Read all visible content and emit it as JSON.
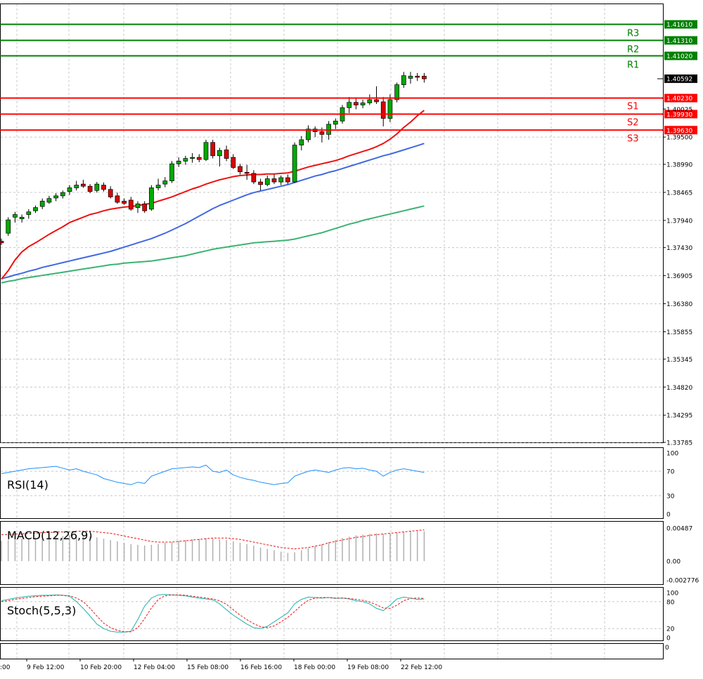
{
  "chart_data": {
    "type": "candlestick",
    "price_axis": {
      "ticks": [
        "1.41610",
        "1.41310",
        "1.41020",
        "1.40592",
        "1.40230",
        "1.40025",
        "1.39930",
        "1.39630",
        "1.39500",
        "1.38990",
        "1.38465",
        "1.37940",
        "1.37430",
        "1.36905",
        "1.36380",
        "1.35855",
        "1.35345",
        "1.34820",
        "1.34295",
        "1.33785"
      ],
      "ylim": [
        1.33785,
        1.4161
      ]
    },
    "levels": [
      {
        "name": "R3",
        "label": "R3",
        "value": 1.4161,
        "value_text": "1.41610",
        "color": "#008000"
      },
      {
        "name": "R2",
        "label": "R2",
        "value": 1.4131,
        "value_text": "1.41310",
        "color": "#008000"
      },
      {
        "name": "R1",
        "label": "R1",
        "value": 1.4102,
        "value_text": "1.41020",
        "color": "#008000"
      },
      {
        "name": "S1",
        "label": "S1",
        "value": 1.4023,
        "value_text": "1.40230",
        "color": "#ff0000"
      },
      {
        "name": "S2",
        "label": "S2",
        "value": 1.3993,
        "value_text": "1.39930",
        "color": "#ff0000"
      },
      {
        "name": "S3",
        "label": "S3",
        "value": 1.3963,
        "value_text": "1.39630",
        "color": "#ff0000"
      }
    ],
    "current_price": {
      "value": 1.40592,
      "value_text": "1.40592"
    },
    "x_labels": [
      "9 Feb 12:00",
      "10 Feb 20:00",
      "12 Feb 04:00",
      "15 Feb 08:00",
      "16 Feb 16:00",
      "18 Feb 00:00",
      "19 Feb 08:00",
      "22 Feb 12:00"
    ],
    "x_label_partial": ":00",
    "candles": [
      [
        1.3755,
        1.376,
        1.3748,
        1.3752
      ],
      [
        1.377,
        1.38,
        1.3765,
        1.3795
      ],
      [
        1.38,
        1.381,
        1.379,
        1.3805
      ],
      [
        1.3797,
        1.3805,
        1.379,
        1.38
      ],
      [
        1.3805,
        1.3815,
        1.3797,
        1.381
      ],
      [
        1.3812,
        1.3822,
        1.3808,
        1.3818
      ],
      [
        1.382,
        1.3835,
        1.3815,
        1.383
      ],
      [
        1.3828,
        1.384,
        1.3825,
        1.3835
      ],
      [
        1.3836,
        1.3845,
        1.383,
        1.384
      ],
      [
        1.384,
        1.385,
        1.3835,
        1.3846
      ],
      [
        1.3848,
        1.386,
        1.3842,
        1.3855
      ],
      [
        1.3855,
        1.3868,
        1.385,
        1.386
      ],
      [
        1.3862,
        1.387,
        1.3855,
        1.3858
      ],
      [
        1.3858,
        1.3862,
        1.3845,
        1.3848
      ],
      [
        1.385,
        1.3866,
        1.3846,
        1.3862
      ],
      [
        1.386,
        1.3865,
        1.3848,
        1.3852
      ],
      [
        1.3852,
        1.3858,
        1.3835,
        1.3838
      ],
      [
        1.384,
        1.3846,
        1.3825,
        1.3828
      ],
      [
        1.383,
        1.3835,
        1.3823,
        1.3826
      ],
      [
        1.3832,
        1.3838,
        1.3812,
        1.3815
      ],
      [
        1.3818,
        1.383,
        1.3808,
        1.3825
      ],
      [
        1.3825,
        1.383,
        1.3808,
        1.3812
      ],
      [
        1.3815,
        1.386,
        1.3812,
        1.3855
      ],
      [
        1.3855,
        1.3872,
        1.385,
        1.386
      ],
      [
        1.3862,
        1.3875,
        1.3856,
        1.3868
      ],
      [
        1.3868,
        1.3905,
        1.3864,
        1.39
      ],
      [
        1.39,
        1.3912,
        1.3894,
        1.3905
      ],
      [
        1.3905,
        1.3915,
        1.3898,
        1.391
      ],
      [
        1.391,
        1.392,
        1.3902,
        1.3912
      ],
      [
        1.3912,
        1.3918,
        1.3903,
        1.3908
      ],
      [
        1.3908,
        1.3945,
        1.3905,
        1.394
      ],
      [
        1.394,
        1.3945,
        1.391,
        1.3915
      ],
      [
        1.3915,
        1.393,
        1.3895,
        1.3925
      ],
      [
        1.3926,
        1.3934,
        1.3905,
        1.391
      ],
      [
        1.3912,
        1.3918,
        1.389,
        1.3893
      ],
      [
        1.3895,
        1.39,
        1.388,
        1.3885
      ],
      [
        1.3884,
        1.3898,
        1.387,
        1.3882
      ],
      [
        1.3882,
        1.3888,
        1.3862,
        1.3866
      ],
      [
        1.3866,
        1.3872,
        1.385,
        1.3861
      ],
      [
        1.3861,
        1.3878,
        1.3858,
        1.3872
      ],
      [
        1.3872,
        1.388,
        1.3862,
        1.3866
      ],
      [
        1.3866,
        1.3878,
        1.386,
        1.3874
      ],
      [
        1.3874,
        1.388,
        1.3862,
        1.3866
      ],
      [
        1.3866,
        1.394,
        1.3864,
        1.3935
      ],
      [
        1.3935,
        1.3952,
        1.3925,
        1.3945
      ],
      [
        1.3945,
        1.3972,
        1.394,
        1.3965
      ],
      [
        1.3965,
        1.397,
        1.395,
        1.396
      ],
      [
        1.396,
        1.3968,
        1.394,
        1.3955
      ],
      [
        1.3955,
        1.398,
        1.3945,
        1.3974
      ],
      [
        1.3974,
        1.3985,
        1.3965,
        1.398
      ],
      [
        1.398,
        1.401,
        1.3975,
        1.4005
      ],
      [
        1.4005,
        1.4025,
        1.3995,
        1.4015
      ],
      [
        1.4015,
        1.4022,
        1.4002,
        1.401
      ],
      [
        1.401,
        1.402,
        1.4004,
        1.4014
      ],
      [
        1.4014,
        1.403,
        1.401,
        1.402
      ],
      [
        1.402,
        1.4045,
        1.4012,
        1.4016
      ],
      [
        1.4016,
        1.4025,
        1.397,
        1.3985
      ],
      [
        1.3985,
        1.403,
        1.3978,
        1.402
      ],
      [
        1.402,
        1.4052,
        1.4015,
        1.4048
      ],
      [
        1.4048,
        1.4072,
        1.4042,
        1.4065
      ],
      [
        1.406,
        1.4072,
        1.405,
        1.4064
      ],
      [
        1.4064,
        1.407,
        1.4055,
        1.4062
      ],
      [
        1.4064,
        1.407,
        1.4052,
        1.4059
      ]
    ],
    "ma_fast": [
      1.3684,
      1.37,
      1.372,
      1.3735,
      1.3745,
      1.3752,
      1.376,
      1.3768,
      1.3775,
      1.3782,
      1.379,
      1.3795,
      1.38,
      1.3805,
      1.3808,
      1.3812,
      1.3815,
      1.3817,
      1.3819,
      1.382,
      1.3822,
      1.3824,
      1.3826,
      1.383,
      1.3834,
      1.3838,
      1.3843,
      1.3848,
      1.3853,
      1.3857,
      1.3862,
      1.3866,
      1.387,
      1.3873,
      1.3876,
      1.3878,
      1.3879,
      1.388,
      1.388,
      1.3881,
      1.3881,
      1.3882,
      1.3883,
      1.3886,
      1.389,
      1.3894,
      1.3897,
      1.39,
      1.3903,
      1.3906,
      1.391,
      1.3915,
      1.3919,
      1.3923,
      1.3927,
      1.3932,
      1.3938,
      1.3946,
      1.3956,
      1.3968,
      1.3978,
      1.399,
      1.4
    ],
    "ma_mid": [
      1.3685,
      1.3688,
      1.3692,
      1.3695,
      1.3699,
      1.3702,
      1.3706,
      1.3709,
      1.3712,
      1.3715,
      1.3718,
      1.3721,
      1.3724,
      1.3727,
      1.373,
      1.3733,
      1.3736,
      1.374,
      1.3744,
      1.3748,
      1.3752,
      1.3756,
      1.376,
      1.3765,
      1.377,
      1.3776,
      1.3782,
      1.3788,
      1.3795,
      1.3802,
      1.3809,
      1.3816,
      1.3822,
      1.3827,
      1.3832,
      1.3837,
      1.3842,
      1.3846,
      1.3849,
      1.3852,
      1.3855,
      1.3858,
      1.3861,
      1.3865,
      1.3869,
      1.3873,
      1.3877,
      1.388,
      1.3884,
      1.3887,
      1.3891,
      1.3895,
      1.3899,
      1.3903,
      1.3907,
      1.3911,
      1.3915,
      1.3918,
      1.3922,
      1.3926,
      1.393,
      1.3934,
      1.3938
    ],
    "ma_slow": [
      1.3677,
      1.368,
      1.3682,
      1.3685,
      1.3687,
      1.3689,
      1.3691,
      1.3693,
      1.3695,
      1.3697,
      1.3699,
      1.3701,
      1.3703,
      1.3705,
      1.3707,
      1.3709,
      1.3711,
      1.3712,
      1.3714,
      1.3715,
      1.3716,
      1.3717,
      1.3718,
      1.372,
      1.3722,
      1.3724,
      1.3726,
      1.3728,
      1.3731,
      1.3734,
      1.3737,
      1.374,
      1.3742,
      1.3744,
      1.3746,
      1.3748,
      1.375,
      1.3752,
      1.3753,
      1.3754,
      1.3755,
      1.3756,
      1.3757,
      1.3759,
      1.3762,
      1.3765,
      1.3768,
      1.3771,
      1.3775,
      1.3779,
      1.3783,
      1.3787,
      1.379,
      1.3794,
      1.3797,
      1.38,
      1.3803,
      1.3806,
      1.3809,
      1.3812,
      1.3815,
      1.3818,
      1.3821
    ],
    "indicators": [
      {
        "name": "RSI",
        "title": "RSI(14)",
        "ticks": [
          "100",
          "70",
          "30",
          "0"
        ],
        "ylim": [
          0,
          100
        ],
        "values": [
          66,
          68,
          70,
          72,
          74,
          75,
          76,
          77,
          78,
          75,
          72,
          74,
          70,
          67,
          64,
          58,
          55,
          52,
          50,
          48,
          52,
          50,
          62,
          66,
          70,
          74,
          75,
          76,
          77,
          76,
          80,
          70,
          68,
          72,
          64,
          60,
          57,
          55,
          52,
          50,
          48,
          50,
          51,
          62,
          66,
          70,
          72,
          70,
          68,
          72,
          75,
          76,
          74,
          75,
          72,
          70,
          62,
          68,
          72,
          74,
          72,
          70,
          68
        ]
      },
      {
        "name": "MACD",
        "title": "MACD(12,26,9)",
        "ticks": [
          "0.00487",
          "0.00",
          "-0.002776"
        ],
        "ylim": [
          -0.002776,
          0.00487
        ],
        "hist": [
          0.003,
          0.0031,
          0.0032,
          0.0033,
          0.0034,
          0.0035,
          0.0036,
          0.0036,
          0.0037,
          0.0037,
          0.0038,
          0.0038,
          0.0037,
          0.0036,
          0.0035,
          0.0033,
          0.0031,
          0.0029,
          0.0027,
          0.0025,
          0.0024,
          0.0023,
          0.0024,
          0.0025,
          0.0027,
          0.0028,
          0.003,
          0.0031,
          0.0032,
          0.0033,
          0.0034,
          0.0033,
          0.0032,
          0.0031,
          0.0029,
          0.0027,
          0.0025,
          0.0023,
          0.002,
          0.0018,
          0.0016,
          0.0014,
          0.0012,
          0.0013,
          0.0016,
          0.0019,
          0.0022,
          0.0025,
          0.0028,
          0.0031,
          0.0034,
          0.0036,
          0.0038,
          0.0039,
          0.004,
          0.0041,
          0.004,
          0.0041,
          0.0042,
          0.0043,
          0.0044,
          0.0044,
          0.0044
        ],
        "signal": [
          0.0039,
          0.0039,
          0.004,
          0.004,
          0.0041,
          0.0041,
          0.0042,
          0.0042,
          0.0043,
          0.0043,
          0.0043,
          0.0044,
          0.0044,
          0.0044,
          0.0043,
          0.0042,
          0.0041,
          0.0039,
          0.0037,
          0.0035,
          0.0033,
          0.0031,
          0.0029,
          0.0028,
          0.0028,
          0.0028,
          0.0029,
          0.003,
          0.0031,
          0.0032,
          0.0033,
          0.0034,
          0.0034,
          0.0034,
          0.0033,
          0.0032,
          0.003,
          0.0028,
          0.0026,
          0.0024,
          0.0022,
          0.002,
          0.0019,
          0.0018,
          0.0019,
          0.002,
          0.0022,
          0.0024,
          0.0027,
          0.0029,
          0.0031,
          0.0033,
          0.0035,
          0.0036,
          0.0038,
          0.0039,
          0.004,
          0.0041,
          0.0042,
          0.0043,
          0.0044,
          0.0045,
          0.0046
        ]
      },
      {
        "name": "Stoch",
        "title": "Stoch(5,5,3)",
        "ticks": [
          "100",
          "80",
          "20",
          "0"
        ],
        "ylim": [
          0,
          100
        ],
        "main": [
          82,
          85,
          88,
          90,
          92,
          93,
          94,
          94,
          95,
          94,
          92,
          80,
          65,
          48,
          30,
          20,
          14,
          12,
          12,
          14,
          40,
          70,
          88,
          95,
          96,
          95,
          94,
          93,
          90,
          88,
          86,
          84,
          75,
          62,
          50,
          40,
          30,
          22,
          20,
          25,
          35,
          45,
          55,
          75,
          85,
          90,
          89,
          88,
          89,
          87,
          88,
          86,
          82,
          80,
          75,
          65,
          60,
          72,
          86,
          90,
          88,
          85,
          86
        ],
        "signal": [
          80,
          82,
          85,
          87,
          89,
          91,
          92,
          93,
          94,
          94,
          93,
          88,
          80,
          65,
          48,
          32,
          22,
          16,
          13,
          13,
          22,
          42,
          66,
          85,
          93,
          95,
          95,
          94,
          92,
          90,
          88,
          86,
          82,
          74,
          62,
          50,
          40,
          31,
          24,
          22,
          26,
          35,
          45,
          58,
          72,
          83,
          88,
          89,
          89,
          88,
          88,
          87,
          85,
          83,
          79,
          73,
          66,
          65,
          72,
          82,
          87,
          88,
          87
        ]
      }
    ]
  }
}
